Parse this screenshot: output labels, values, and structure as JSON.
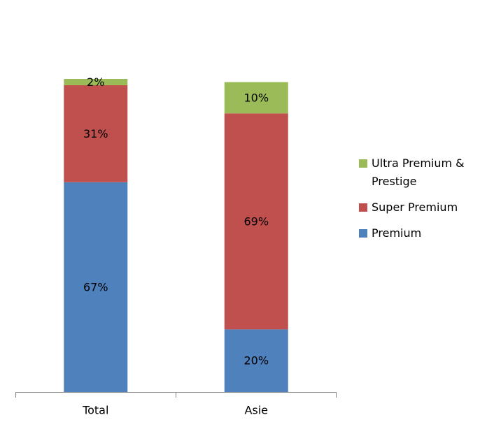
{
  "chart_data": {
    "type": "stacked-bar",
    "categories": [
      "Total",
      "Asie"
    ],
    "series": [
      {
        "name": "Premium",
        "color": "#4f81bd",
        "values": [
          67,
          20
        ],
        "value_labels": [
          "67%",
          "20%"
        ]
      },
      {
        "name": "Super Premium",
        "color": "#c0504d",
        "values": [
          31,
          69
        ],
        "value_labels": [
          "31%",
          "69%"
        ]
      },
      {
        "name": "Ultra Premium & Prestige",
        "color": "#9bbb59",
        "values": [
          2,
          10
        ],
        "value_labels": [
          "2%",
          "10%"
        ]
      }
    ],
    "ylim": [
      0,
      100
    ]
  }
}
